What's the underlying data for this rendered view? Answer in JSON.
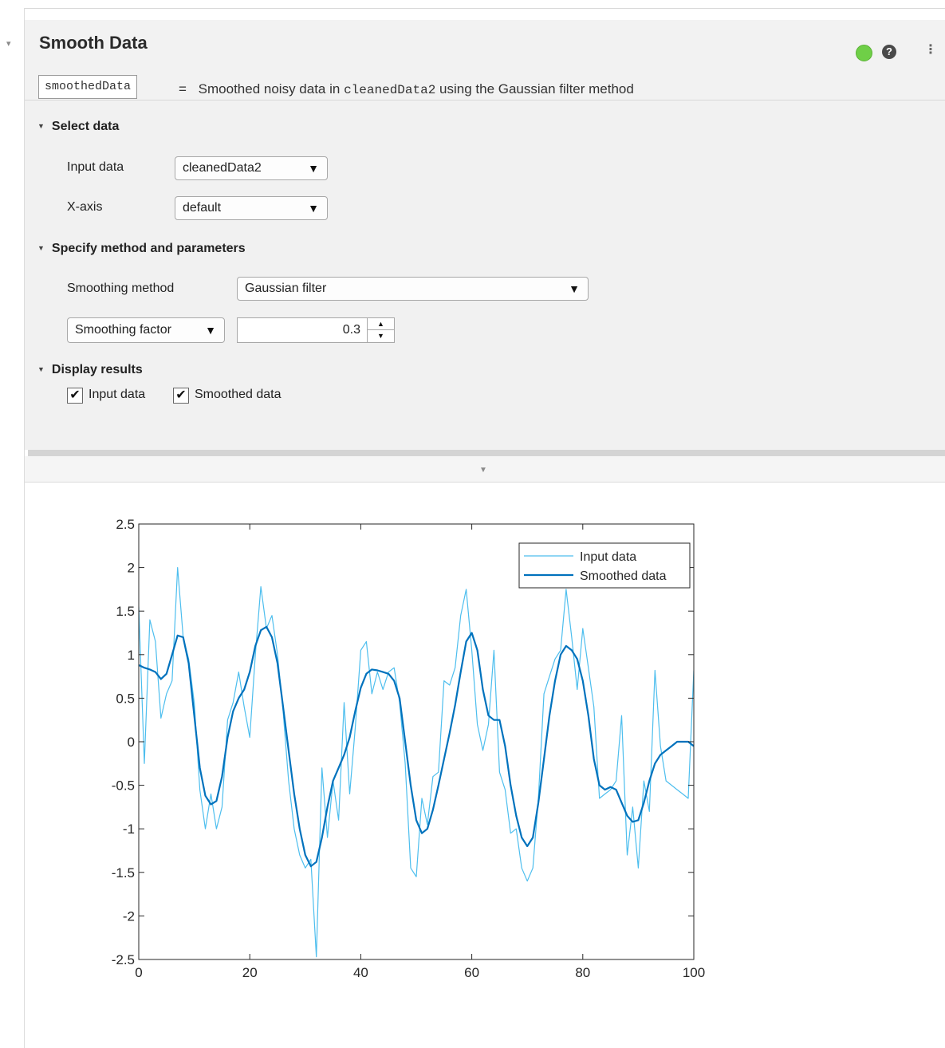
{
  "task": {
    "title": "Smooth Data",
    "output_variable": "smoothedData",
    "summary_eq": "=",
    "summary_pre": "Smoothed noisy data in",
    "summary_var": "cleanedData2",
    "summary_post": "using the Gaussian filter method",
    "status_color": "#6fcf47"
  },
  "icons": {
    "collapse": "▾",
    "help": "?",
    "more": "⋮",
    "caret": "▼",
    "section_tri": "▼",
    "expand": "▼",
    "spin_up": "▲",
    "spin_down": "▼",
    "check": "✔"
  },
  "select_data": {
    "heading": "Select data",
    "input_label": "Input data",
    "input_value": "cleanedData2",
    "xaxis_label": "X-axis",
    "xaxis_value": "default"
  },
  "method": {
    "heading": "Specify method and parameters",
    "method_label": "Smoothing method",
    "method_value": "Gaussian filter",
    "param_value": "Smoothing factor",
    "factor_value": "0.3"
  },
  "display": {
    "heading": "Display results",
    "input_checkbox_label": "Input data",
    "smoothed_checkbox_label": "Smoothed data",
    "input_checked": true,
    "smoothed_checked": true
  },
  "chart_data": {
    "type": "line",
    "title": "",
    "xlabel": "",
    "ylabel": "",
    "xlim": [
      0,
      100
    ],
    "ylim": [
      -2.5,
      2.5
    ],
    "xticks": [
      0,
      20,
      40,
      60,
      80,
      100
    ],
    "yticks": [
      2.5,
      2,
      1.5,
      1,
      0.5,
      0,
      -0.5,
      -1,
      -1.5,
      -2,
      -2.5
    ],
    "legend": "top-right",
    "series": [
      {
        "name": "Input data",
        "color": "#4dbeee",
        "x": [
          0,
          1,
          2,
          3,
          4,
          5,
          6,
          7,
          8,
          9,
          10,
          11,
          12,
          13,
          14,
          15,
          16,
          17,
          18,
          19,
          20,
          21,
          22,
          23,
          24,
          25,
          26,
          27,
          28,
          29,
          30,
          31,
          32,
          33,
          34,
          35,
          36,
          37,
          38,
          39,
          40,
          41,
          42,
          43,
          44,
          45,
          46,
          47,
          48,
          49,
          50,
          51,
          52,
          53,
          54,
          55,
          56,
          57,
          58,
          59,
          60,
          61,
          62,
          63,
          64,
          65,
          66,
          67,
          68,
          69,
          70,
          71,
          72,
          73,
          74,
          75,
          76,
          77,
          78,
          79,
          80,
          81,
          82,
          83,
          84,
          85,
          86,
          87,
          88,
          89,
          90,
          91,
          92,
          93,
          94,
          95,
          96,
          97,
          98,
          99,
          100
        ],
        "y": [
          1.55,
          -0.25,
          1.4,
          1.15,
          0.27,
          0.55,
          0.7,
          2.0,
          1.2,
          0.95,
          0.45,
          -0.55,
          -1.0,
          -0.6,
          -1.0,
          -0.75,
          0.25,
          0.45,
          0.8,
          0.4,
          0.05,
          1.0,
          1.78,
          1.3,
          1.45,
          1.0,
          0.35,
          -0.45,
          -1.0,
          -1.3,
          -1.45,
          -1.35,
          -2.47,
          -0.3,
          -1.1,
          -0.45,
          -0.9,
          0.45,
          -0.6,
          0.15,
          1.05,
          1.15,
          0.55,
          0.8,
          0.6,
          0.8,
          0.85,
          0.45,
          -0.25,
          -1.45,
          -1.55,
          -0.65,
          -0.95,
          -0.4,
          -0.35,
          0.7,
          0.65,
          0.85,
          1.45,
          1.75,
          1.05,
          0.2,
          -0.1,
          0.2,
          1.05,
          -0.35,
          -0.55,
          -1.05,
          -1.0,
          -1.45,
          -1.6,
          -1.45,
          -0.65,
          0.55,
          0.75,
          0.95,
          1.05,
          1.75,
          1.2,
          0.6,
          1.3,
          0.85,
          0.4,
          -0.65,
          -0.6,
          -0.55,
          -0.45,
          0.3,
          -1.3,
          -0.75,
          -1.45,
          -0.45,
          -0.8,
          0.82,
          -0.05,
          -0.45,
          -0.5,
          -0.55,
          -0.6,
          -0.65,
          0.82
        ],
        "width": 1.2
      },
      {
        "name": "Smoothed data",
        "color": "#0072bd",
        "x": [
          0,
          1,
          2,
          3,
          4,
          5,
          6,
          7,
          8,
          9,
          10,
          11,
          12,
          13,
          14,
          15,
          16,
          17,
          18,
          19,
          20,
          21,
          22,
          23,
          24,
          25,
          26,
          27,
          28,
          29,
          30,
          31,
          32,
          33,
          34,
          35,
          36,
          37,
          38,
          39,
          40,
          41,
          42,
          43,
          44,
          45,
          46,
          47,
          48,
          49,
          50,
          51,
          52,
          53,
          54,
          55,
          56,
          57,
          58,
          59,
          60,
          61,
          62,
          63,
          64,
          65,
          66,
          67,
          68,
          69,
          70,
          71,
          72,
          73,
          74,
          75,
          76,
          77,
          78,
          79,
          80,
          81,
          82,
          83,
          84,
          85,
          86,
          87,
          88,
          89,
          90,
          91,
          92,
          93,
          94,
          95,
          96,
          97,
          98,
          99,
          100
        ],
        "y": [
          0.88,
          0.85,
          0.83,
          0.8,
          0.72,
          0.78,
          1.0,
          1.22,
          1.2,
          0.9,
          0.3,
          -0.3,
          -0.62,
          -0.72,
          -0.68,
          -0.4,
          0.05,
          0.35,
          0.5,
          0.6,
          0.8,
          1.1,
          1.28,
          1.32,
          1.2,
          0.9,
          0.4,
          -0.1,
          -0.6,
          -1.0,
          -1.3,
          -1.43,
          -1.38,
          -1.1,
          -0.75,
          -0.45,
          -0.3,
          -0.15,
          0.05,
          0.35,
          0.62,
          0.78,
          0.83,
          0.82,
          0.8,
          0.78,
          0.7,
          0.5,
          0.0,
          -0.5,
          -0.9,
          -1.05,
          -1.0,
          -0.78,
          -0.5,
          -0.2,
          0.1,
          0.42,
          0.8,
          1.15,
          1.25,
          1.05,
          0.6,
          0.3,
          0.25,
          0.25,
          -0.05,
          -0.5,
          -0.85,
          -1.1,
          -1.2,
          -1.1,
          -0.7,
          -0.2,
          0.3,
          0.7,
          1.0,
          1.1,
          1.05,
          0.95,
          0.7,
          0.3,
          -0.2,
          -0.5,
          -0.55,
          -0.52,
          -0.55,
          -0.7,
          -0.85,
          -0.92,
          -0.9,
          -0.7,
          -0.45,
          -0.25,
          -0.15,
          -0.1,
          -0.05,
          0.0,
          0.0,
          0.0,
          -0.05
        ],
        "width": 2.2
      }
    ]
  }
}
